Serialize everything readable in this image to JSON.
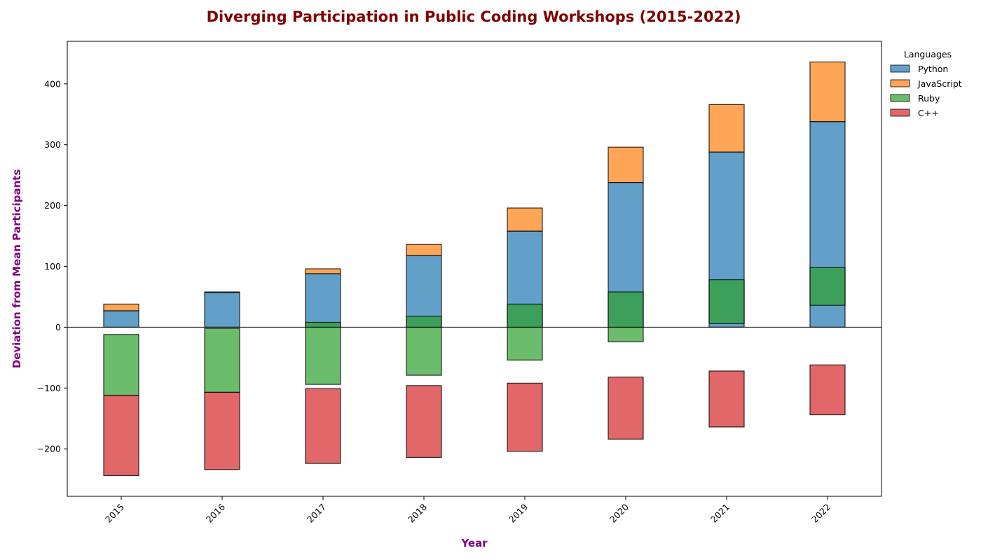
{
  "chart_data": {
    "type": "bar",
    "title": "Diverging Participation in Public Coding Workshops (2015-2022)",
    "xlabel": "Year",
    "ylabel": "Deviation from Mean Participants",
    "categories": [
      "2015",
      "2016",
      "2017",
      "2018",
      "2019",
      "2020",
      "2021",
      "2022"
    ],
    "ylim": [
      -278,
      470
    ],
    "yticks": [
      -200,
      -100,
      0,
      100,
      200,
      300,
      400
    ],
    "legend": {
      "title": "Languages",
      "placement": "outside-top-right"
    },
    "grid": false,
    "series": [
      {
        "name": "Python",
        "color": "#1f77b4",
        "bars": [
          [
            0,
            27
          ],
          [
            0,
            57
          ],
          [
            0,
            88
          ],
          [
            0,
            118
          ],
          [
            0,
            158
          ],
          [
            0,
            238
          ],
          [
            0,
            288
          ],
          [
            0,
            338
          ]
        ]
      },
      {
        "name": "JavaScript",
        "color": "#ff7f0e",
        "bars": [
          [
            27,
            38
          ],
          [
            57,
            58
          ],
          [
            88,
            96
          ],
          [
            118,
            136
          ],
          [
            158,
            196
          ],
          [
            238,
            296
          ],
          [
            288,
            366
          ],
          [
            338,
            436
          ]
        ]
      },
      {
        "name": "Ruby",
        "color": "#2ca02c",
        "bars": [
          [
            -12,
            -112
          ],
          [
            -2,
            -107
          ],
          [
            8,
            -94
          ],
          [
            18,
            -79
          ],
          [
            38,
            -54
          ],
          [
            58,
            -24
          ],
          [
            78,
            6
          ],
          [
            98,
            36
          ]
        ]
      },
      {
        "name": "C++",
        "color": "#d62728",
        "bars": [
          [
            -112,
            -244
          ],
          [
            -107,
            -234
          ],
          [
            -101,
            -224
          ],
          [
            -96,
            -214
          ],
          [
            -92,
            -204
          ],
          [
            -82,
            -184
          ],
          [
            -72,
            -164
          ],
          [
            -62,
            -144
          ]
        ]
      }
    ]
  },
  "colors": {
    "title": "#800000",
    "axis_labels": "#800080"
  }
}
